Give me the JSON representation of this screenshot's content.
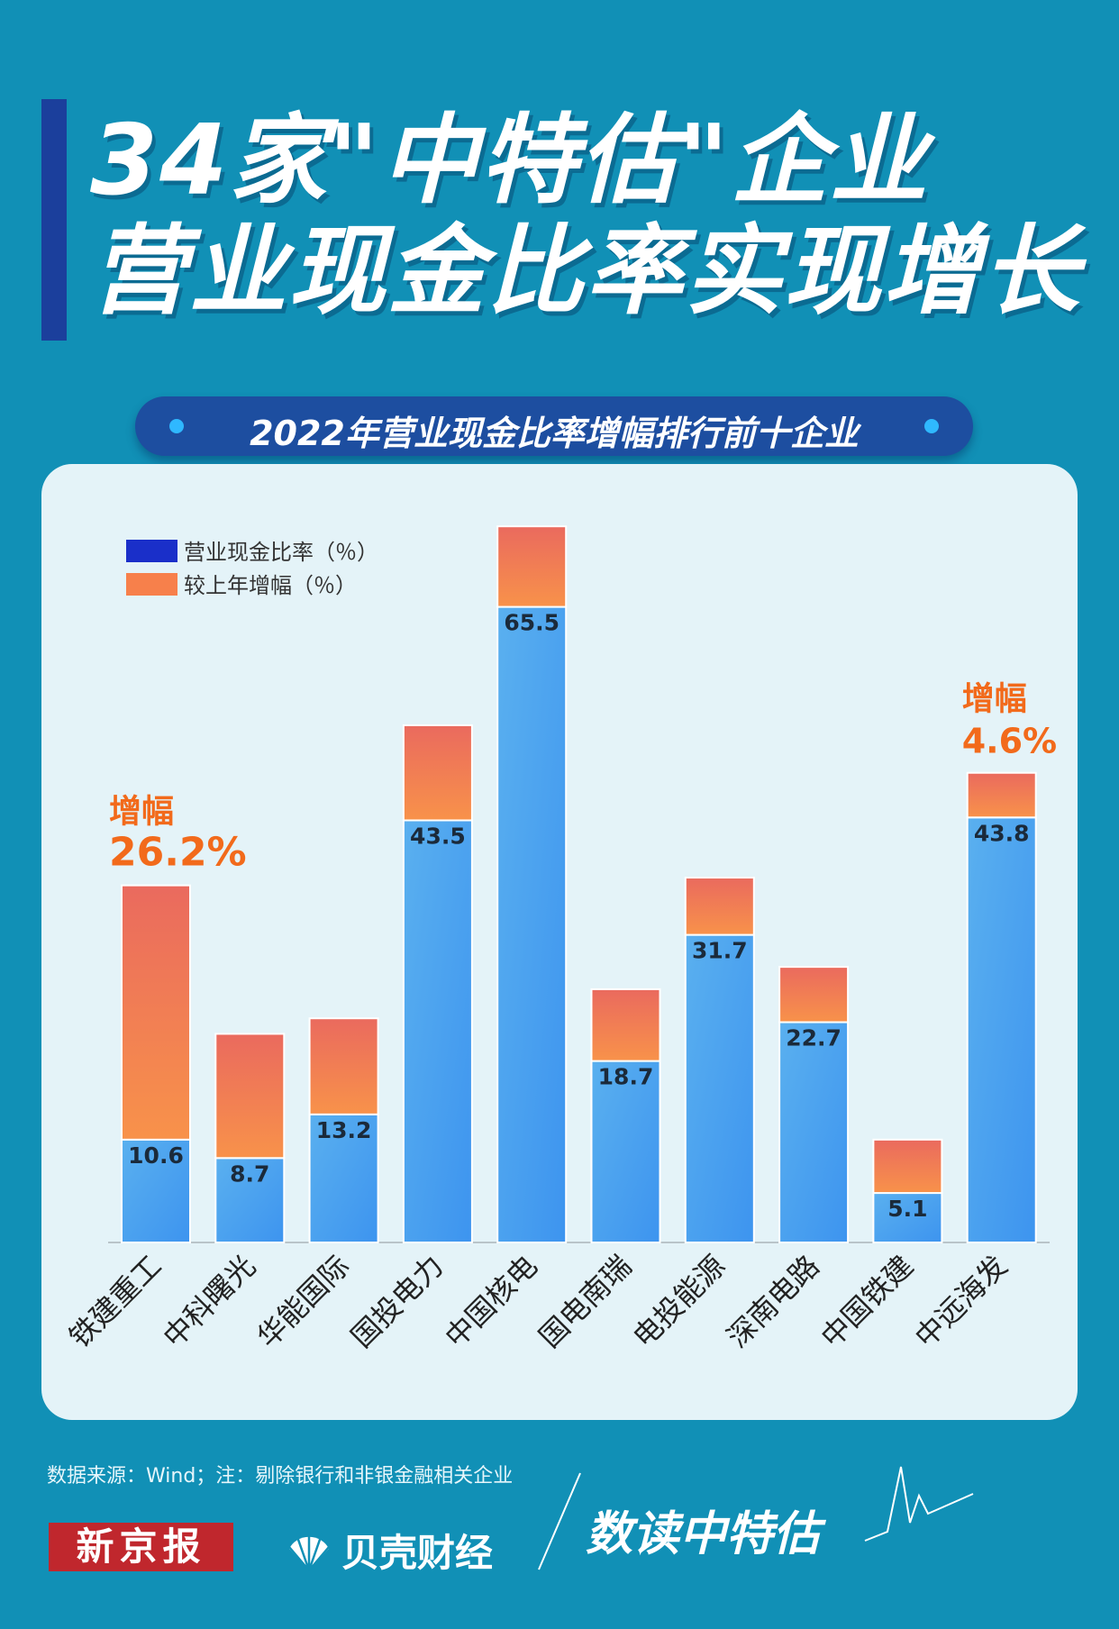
{
  "title": {
    "line1": "34家\"中特估\"企业",
    "line2": "营业现金比率实现增长"
  },
  "subtitle": "2022年营业现金比率增幅排行前十企业",
  "colors": {
    "background": "#1190b6",
    "ratio_bar": "#4aa3ee",
    "increase_bar": "#f07a55",
    "legend_ratio": "#1a2fc9",
    "legend_increase": "#f7804b",
    "highlight": "#f26a1b"
  },
  "chart_data": {
    "type": "bar",
    "stacked": true,
    "categories": [
      "铁建重工",
      "中科曙光",
      "华能国际",
      "国投电力",
      "中国核电",
      "国电南瑞",
      "电投能源",
      "深南电路",
      "中国铁建",
      "中远海发"
    ],
    "series": [
      {
        "name": "营业现金比率（％）",
        "values": [
          10.6,
          8.7,
          13.2,
          43.5,
          65.5,
          18.7,
          31.7,
          22.7,
          5.1,
          43.8
        ]
      },
      {
        "name": "较上年增幅（％）",
        "values": [
          26.2,
          12.8,
          9.9,
          9.8,
          8.3,
          7.4,
          5.9,
          5.7,
          5.5,
          4.6
        ]
      }
    ],
    "ylim": [
      0,
      76
    ],
    "grid": false,
    "legend": "top-left",
    "annotations": [
      {
        "category": "铁建重工",
        "label": "增幅",
        "value": "26.2%"
      },
      {
        "category": "中远海发",
        "label": "增幅",
        "value": "4.6%"
      }
    ]
  },
  "footer": {
    "source": "数据来源：Wind；注：剔除银行和非银金融相关企业",
    "logo_xjb": "新京报",
    "logo_bk": "贝壳财经",
    "slogan": "数读中特估"
  }
}
